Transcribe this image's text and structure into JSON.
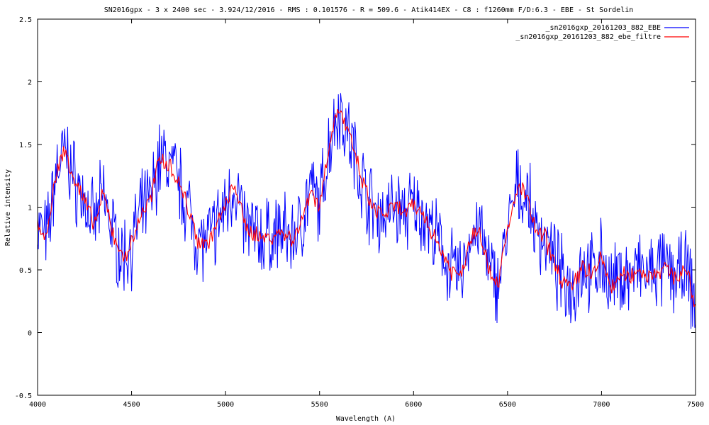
{
  "chart_data": {
    "type": "line",
    "title": "SN2016gpx - 3 x 2400 sec - 3.924/12/2016 - RMS : 0.101576 - R = 509.6 - Atik414EX - C8 : f1260mm F/D:6.3 - EBE - St Sordelin",
    "xlabel": "Wavelength (A)",
    "ylabel": "Relative intensity",
    "xlim": [
      4000,
      7500
    ],
    "ylim": [
      -0.5,
      2.5
    ],
    "xticks": [
      4000,
      4500,
      5000,
      5500,
      6000,
      6500,
      7000,
      7500
    ],
    "yticks": [
      -0.5,
      0,
      0.5,
      1,
      1.5,
      2,
      2.5
    ],
    "xtick_labels": [
      "4000",
      "4500",
      "5000",
      "5500",
      "6000",
      "6500",
      "7000",
      "7500"
    ],
    "ytick_labels": [
      "-0.5",
      "0",
      "0.5",
      "1",
      "1.5",
      "2",
      "2.5"
    ],
    "grid": false,
    "legend_position": "top-right",
    "series": [
      {
        "name": "_sn2016gxp_20161203_882_EBE",
        "color": "#0000ff",
        "x": [
          4000,
          4050,
          4100,
          4150,
          4200,
          4250,
          4300,
          4350,
          4400,
          4450,
          4500,
          4550,
          4600,
          4650,
          4700,
          4750,
          4800,
          4850,
          4900,
          4950,
          5000,
          5050,
          5100,
          5150,
          5200,
          5250,
          5300,
          5350,
          5400,
          5450,
          5500,
          5550,
          5600,
          5650,
          5700,
          5750,
          5800,
          5850,
          5900,
          5950,
          6000,
          6050,
          6100,
          6150,
          6200,
          6250,
          6300,
          6350,
          6400,
          6450,
          6500,
          6550,
          6600,
          6650,
          6700,
          6750,
          6800,
          6850,
          6900,
          6950,
          7000,
          7050,
          7100,
          7150,
          7200,
          7250,
          7300,
          7350,
          7400,
          7450,
          7500
        ],
        "y": [
          0.85,
          0.75,
          1.3,
          1.45,
          1.2,
          1.05,
          0.85,
          1.1,
          0.8,
          0.6,
          0.7,
          0.95,
          1.05,
          1.4,
          1.35,
          1.2,
          1.0,
          0.75,
          0.7,
          0.85,
          1.0,
          1.2,
          0.85,
          0.8,
          0.75,
          0.78,
          0.8,
          0.75,
          0.85,
          1.15,
          1.0,
          1.5,
          1.8,
          1.6,
          1.35,
          1.1,
          0.95,
          0.95,
          1.0,
          0.95,
          1.0,
          0.95,
          0.8,
          0.65,
          0.5,
          0.45,
          0.75,
          0.85,
          0.5,
          0.4,
          0.8,
          1.15,
          1.1,
          0.8,
          0.75,
          0.55,
          0.4,
          0.35,
          0.55,
          0.45,
          0.6,
          0.35,
          0.45,
          0.45,
          0.5,
          0.45,
          0.5,
          0.5,
          0.45,
          0.5,
          0.2
        ],
        "amplitude": 0.25
      },
      {
        "name": "_sn2016gxp_20161203_882_ebe_filtre",
        "color": "#ff0000",
        "x": [
          4000,
          4050,
          4100,
          4150,
          4200,
          4250,
          4300,
          4350,
          4400,
          4450,
          4500,
          4550,
          4600,
          4650,
          4700,
          4750,
          4800,
          4850,
          4900,
          4950,
          5000,
          5050,
          5100,
          5150,
          5200,
          5250,
          5300,
          5350,
          5400,
          5450,
          5500,
          5550,
          5600,
          5650,
          5700,
          5750,
          5800,
          5850,
          5900,
          5950,
          6000,
          6050,
          6100,
          6150,
          6200,
          6250,
          6300,
          6350,
          6400,
          6450,
          6500,
          6550,
          6600,
          6650,
          6700,
          6750,
          6800,
          6850,
          6900,
          6950,
          7000,
          7050,
          7100,
          7150,
          7200,
          7250,
          7300,
          7350,
          7400,
          7450,
          7500
        ],
        "y": [
          0.85,
          0.75,
          1.3,
          1.45,
          1.2,
          1.05,
          0.85,
          1.1,
          0.8,
          0.6,
          0.7,
          0.95,
          1.05,
          1.4,
          1.35,
          1.2,
          1.0,
          0.75,
          0.7,
          0.85,
          1.0,
          1.2,
          0.85,
          0.8,
          0.75,
          0.78,
          0.8,
          0.75,
          0.85,
          1.15,
          1.0,
          1.5,
          1.8,
          1.6,
          1.35,
          1.1,
          0.95,
          0.95,
          1.0,
          0.95,
          1.0,
          0.95,
          0.8,
          0.65,
          0.5,
          0.45,
          0.75,
          0.85,
          0.5,
          0.4,
          0.8,
          1.15,
          1.1,
          0.8,
          0.75,
          0.55,
          0.4,
          0.35,
          0.55,
          0.45,
          0.6,
          0.35,
          0.45,
          0.45,
          0.5,
          0.45,
          0.5,
          0.5,
          0.45,
          0.5,
          0.2
        ],
        "amplitude": 0.06
      }
    ]
  }
}
